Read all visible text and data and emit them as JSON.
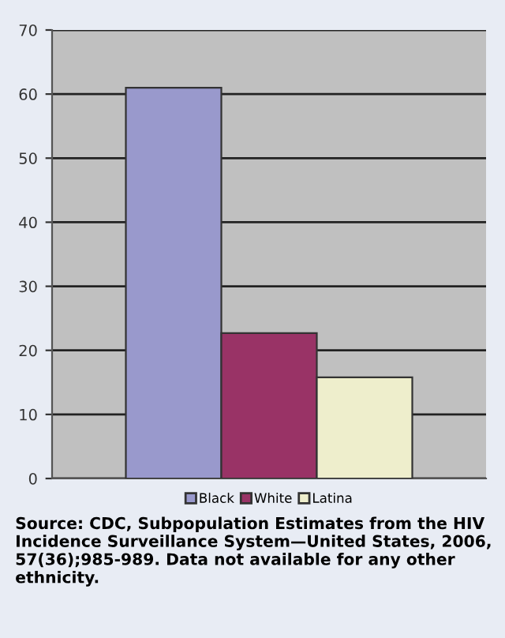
{
  "chart_data": {
    "type": "bar",
    "categories": [
      null
    ],
    "series": [
      {
        "name": "Black",
        "color": "#9999cc",
        "values": [
          61
        ]
      },
      {
        "name": "White",
        "color": "#993366",
        "values": [
          22.7
        ]
      },
      {
        "name": "Latina",
        "color": "#eeeecc",
        "values": [
          15.8
        ]
      }
    ],
    "ylim": [
      0,
      70
    ],
    "yticks": [
      0,
      10,
      20,
      30,
      40,
      50,
      60,
      70
    ],
    "grid": "y",
    "legend": "bottom",
    "annotations": [
      "Source: CDC, Subpopulation Estimates from the HIV Incidence Surveillance System—United States, 2006, 57(36);985-989. Data not available for any other ethnicity."
    ]
  }
}
